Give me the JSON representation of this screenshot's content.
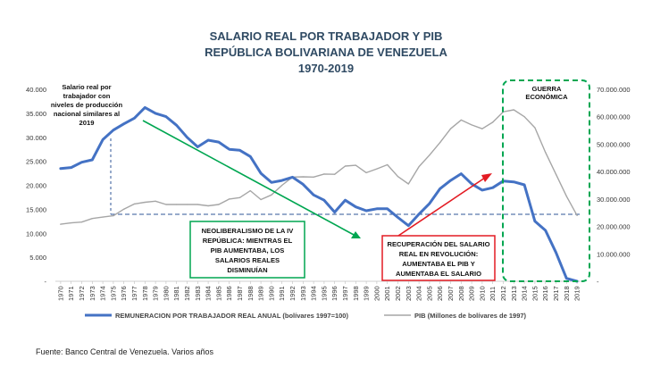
{
  "chart_data": {
    "type": "line",
    "title": [
      "SALARIO REAL POR TRABAJADOR Y PIB",
      "REPÚBLICA BOLIVARIANA DE VENEZUELA",
      "1970-2019"
    ],
    "x": [
      1970,
      1971,
      1972,
      1973,
      1974,
      1975,
      1976,
      1977,
      1978,
      1979,
      1980,
      1981,
      1982,
      1983,
      1984,
      1985,
      1986,
      1987,
      1988,
      1989,
      1990,
      1991,
      1992,
      1993,
      1994,
      1995,
      1996,
      1997,
      1998,
      1999,
      2000,
      2001,
      2002,
      2003,
      2004,
      2005,
      2006,
      2007,
      2008,
      2009,
      2010,
      2011,
      2012,
      2013,
      2014,
      2015,
      2016,
      2017,
      2018,
      2019
    ],
    "left_axis": {
      "min": 0,
      "max": 40000,
      "ticks": [
        "-",
        "5.000",
        "10.000",
        "15.000",
        "20.000",
        "25.000",
        "30.000",
        "35.000",
        "40.000"
      ]
    },
    "right_axis": {
      "min": 0,
      "max": 70000000,
      "ticks": [
        "-",
        "10.000.000",
        "20.000.000",
        "30.000.000",
        "40.000.000",
        "50.000.000",
        "60.000.000",
        "70.000.000"
      ]
    },
    "series": [
      {
        "name": "REMUNERACION POR TRABAJADOR REAL ANUAL (bolívares 1997=100)",
        "axis": "left",
        "color": "#4472c4",
        "values": [
          23500,
          23700,
          24800,
          25300,
          29500,
          31500,
          32800,
          34000,
          36200,
          35000,
          34300,
          32500,
          30000,
          28000,
          29400,
          29000,
          27500,
          27300,
          26000,
          22500,
          20600,
          21000,
          21700,
          20200,
          18000,
          16900,
          14400,
          16900,
          15500,
          14700,
          15100,
          15100,
          13300,
          11600,
          14000,
          16200,
          19300,
          21000,
          22400,
          20300,
          19000,
          19500,
          20900,
          20700,
          20100,
          12500,
          10600,
          6000,
          600,
          0
        ]
      },
      {
        "name": "PIB (Millones de bolívares de 1997)",
        "axis": "right",
        "color": "#a6a6a6",
        "values": [
          20800000,
          21300000,
          21600000,
          22900000,
          23400000,
          23900000,
          26300000,
          28200000,
          28800000,
          29200000,
          28000000,
          28000000,
          28000000,
          28000000,
          27500000,
          28000000,
          30000000,
          30500000,
          33000000,
          29800000,
          31500000,
          35000000,
          38000000,
          38100000,
          38000000,
          39100000,
          39000000,
          42000000,
          42300000,
          39600000,
          41000000,
          42500000,
          38200000,
          35500000,
          41800000,
          46000000,
          50600000,
          55600000,
          58800000,
          57000000,
          55600000,
          58000000,
          61800000,
          62500000,
          60000000,
          56000000,
          47000000,
          39000000,
          31000000,
          24000000
        ]
      }
    ],
    "annotations": {
      "top_left": [
        "Salario real por",
        "trabajador con",
        "niveles de producción",
        "nacional similares al",
        "2019"
      ],
      "green_box": [
        "NEOLIBERALISMO DE LA IV",
        "REPÚBLICA: MIENTRAS EL",
        "PIB AUMENTABA, LOS",
        "SALARIOS REALES",
        "DISMINUÍAN"
      ],
      "red_box": [
        "RECUPERACIÓN DEL SALARIO",
        "REAL EN REVOLUCIÓN:",
        "AUMENTABA EL PIB Y",
        "AUMENTABA EL SALARIO"
      ],
      "guerra": [
        "GUERRA",
        "ECONÓMICA"
      ]
    },
    "colors": {
      "title": "#2f4a63",
      "green": "#00a651",
      "red": "#e31b23",
      "dashed_blue": "#2f5597",
      "dashed_green": "#00a651"
    },
    "grid": false
  },
  "source": "Fuente: Banco Central de Venezuela. Varios años"
}
